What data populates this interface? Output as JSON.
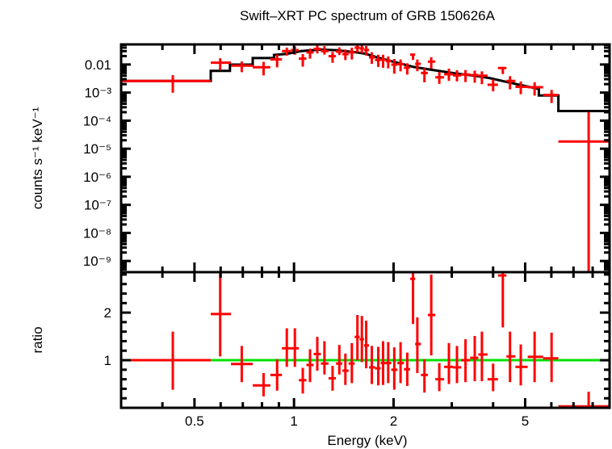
{
  "chart_data": {
    "type": "scatter",
    "title": "Swift–XRT PC spectrum of GRB 150626A",
    "xlabel": "Energy (keV)",
    "xscale": "log",
    "xlim": [
      0.3,
      9.0
    ],
    "x_ticks": [
      {
        "v": 0.5,
        "label": "0.5"
      },
      {
        "v": 1,
        "label": "1"
      },
      {
        "v": 2,
        "label": "2"
      },
      {
        "v": 5,
        "label": "5"
      }
    ],
    "first_bin": [
      0.3,
      0.56
    ],
    "last_bin": [
      6.3,
      9.0
    ],
    "colors": {
      "data": "#ff0000",
      "model": "#000000",
      "unity": "#00e000"
    },
    "top_panel": {
      "ylabel": "counts s⁻¹ keV⁻¹",
      "yscale": "log",
      "ylim": [
        4e-10,
        0.052
      ],
      "y_ticks": [
        {
          "v": 0.01,
          "label": "0.01"
        },
        {
          "v": 0.001,
          "label": "10⁻³"
        },
        {
          "v": 0.0001,
          "label": "10⁻⁴"
        },
        {
          "v": 1e-05,
          "label": "10⁻⁵"
        },
        {
          "v": 1e-06,
          "label": "10⁻⁶"
        },
        {
          "v": 1e-07,
          "label": "10⁻⁷"
        },
        {
          "v": 1e-08,
          "label": "10⁻⁸"
        },
        {
          "v": 1e-09,
          "label": "10⁻⁹"
        }
      ]
    },
    "bottom_panel": {
      "ylabel": "ratio",
      "ylim": [
        0,
        2.85
      ],
      "y_ticks": [
        {
          "v": 1,
          "label": "1"
        },
        {
          "v": 2,
          "label": "2"
        }
      ]
    },
    "energy": [
      0.43,
      0.598,
      0.695,
      0.809,
      0.889,
      0.951,
      1.006,
      1.063,
      1.118,
      1.176,
      1.236,
      1.308,
      1.371,
      1.43,
      1.496,
      1.555,
      1.604,
      1.653,
      1.719,
      1.798,
      1.859,
      1.927,
      2.01,
      2.1,
      2.2,
      2.29,
      2.36,
      2.48,
      2.6,
      2.75,
      2.94,
      3.11,
      3.3,
      3.52,
      3.7,
      4.0,
      4.28,
      4.5,
      4.85,
      5.34,
      6.01,
      7.78
    ],
    "counts": [
      0.0026,
      0.0116,
      0.0091,
      0.008,
      0.0152,
      0.03,
      0.0325,
      0.0162,
      0.027,
      0.036,
      0.03,
      0.0198,
      0.0288,
      0.0234,
      0.027,
      0.04,
      0.0374,
      0.0328,
      0.0179,
      0.0145,
      0.015,
      0.0132,
      0.0099,
      0.0103,
      0.0077,
      0.0225,
      0.0106,
      0.005,
      0.0127,
      0.0035,
      0.0045,
      0.0041,
      0.0044,
      0.0042,
      0.004,
      0.0019,
      0.0075,
      0.0026,
      0.0016,
      0.00155,
      0.00082,
      1.8e-05
    ],
    "ratio": [
      1.0,
      1.97,
      0.92,
      0.47,
      0.69,
      1.25,
      1.25,
      0.58,
      0.9,
      1.13,
      0.93,
      0.62,
      0.93,
      0.78,
      0.93,
      1.49,
      1.44,
      1.31,
      0.85,
      0.83,
      0.94,
      0.94,
      0.8,
      0.94,
      0.81,
      2.71,
      1.34,
      0.69,
      1.95,
      0.6,
      0.86,
      0.85,
      1.0,
      1.05,
      1.12,
      0.6,
      2.78,
      1.08,
      0.86,
      1.07,
      1.04,
      0.03
    ],
    "ratio_lo": [
      0.38,
      1.08,
      0.54,
      0.24,
      0.36,
      0.86,
      0.86,
      0.3,
      0.54,
      0.78,
      0.7,
      0.36,
      0.7,
      0.48,
      0.52,
      1.0,
      0.96,
      0.83,
      0.5,
      0.47,
      0.48,
      0.52,
      0.38,
      0.52,
      0.46,
      1.76,
      0.73,
      0.32,
      1.1,
      0.35,
      0.5,
      0.52,
      0.54,
      0.56,
      0.56,
      0.35,
      1.69,
      0.54,
      0.47,
      0.54,
      0.54,
      0
    ],
    "ratio_hi": [
      1.6,
      2.83,
      1.3,
      0.73,
      1.02,
      1.67,
      1.67,
      0.84,
      1.23,
      1.49,
      1.4,
      0.88,
      1.32,
      1.14,
      1.36,
      1.95,
      1.93,
      1.83,
      1.3,
      1.28,
      1.4,
      1.38,
      1.27,
      1.38,
      1.16,
      2.85,
      1.9,
      1.02,
      2.8,
      0.94,
      1.36,
      1.3,
      1.44,
      1.51,
      1.6,
      0.93,
      2.85,
      1.6,
      1.33,
      1.6,
      1.58,
      0.34
    ],
    "model_curve": [
      [
        0.3,
        0.0026
      ],
      [
        0.56,
        0.0026
      ],
      [
        0.56,
        0.0059
      ],
      [
        0.64,
        0.0059
      ],
      [
        0.64,
        0.0099
      ],
      [
        0.75,
        0.0099
      ],
      [
        0.75,
        0.017
      ],
      [
        0.87,
        0.017
      ],
      [
        0.87,
        0.022
      ],
      [
        0.95,
        0.024
      ],
      [
        1.05,
        0.03
      ],
      [
        1.2,
        0.034
      ],
      [
        1.35,
        0.032
      ],
      [
        1.55,
        0.027
      ],
      [
        1.65,
        0.024
      ],
      [
        1.8,
        0.0174
      ],
      [
        2.0,
        0.0125
      ],
      [
        2.3,
        0.0082
      ],
      [
        2.6,
        0.0065
      ],
      [
        3.06,
        0.0049
      ],
      [
        3.5,
        0.004
      ],
      [
        3.9,
        0.0033
      ],
      [
        4.8,
        0.0019
      ],
      [
        5.5,
        0.00135
      ],
      [
        5.5,
        0.00079
      ],
      [
        6.3,
        0.00079
      ],
      [
        6.3,
        0.00022
      ],
      [
        9.0,
        0.00022
      ]
    ]
  }
}
